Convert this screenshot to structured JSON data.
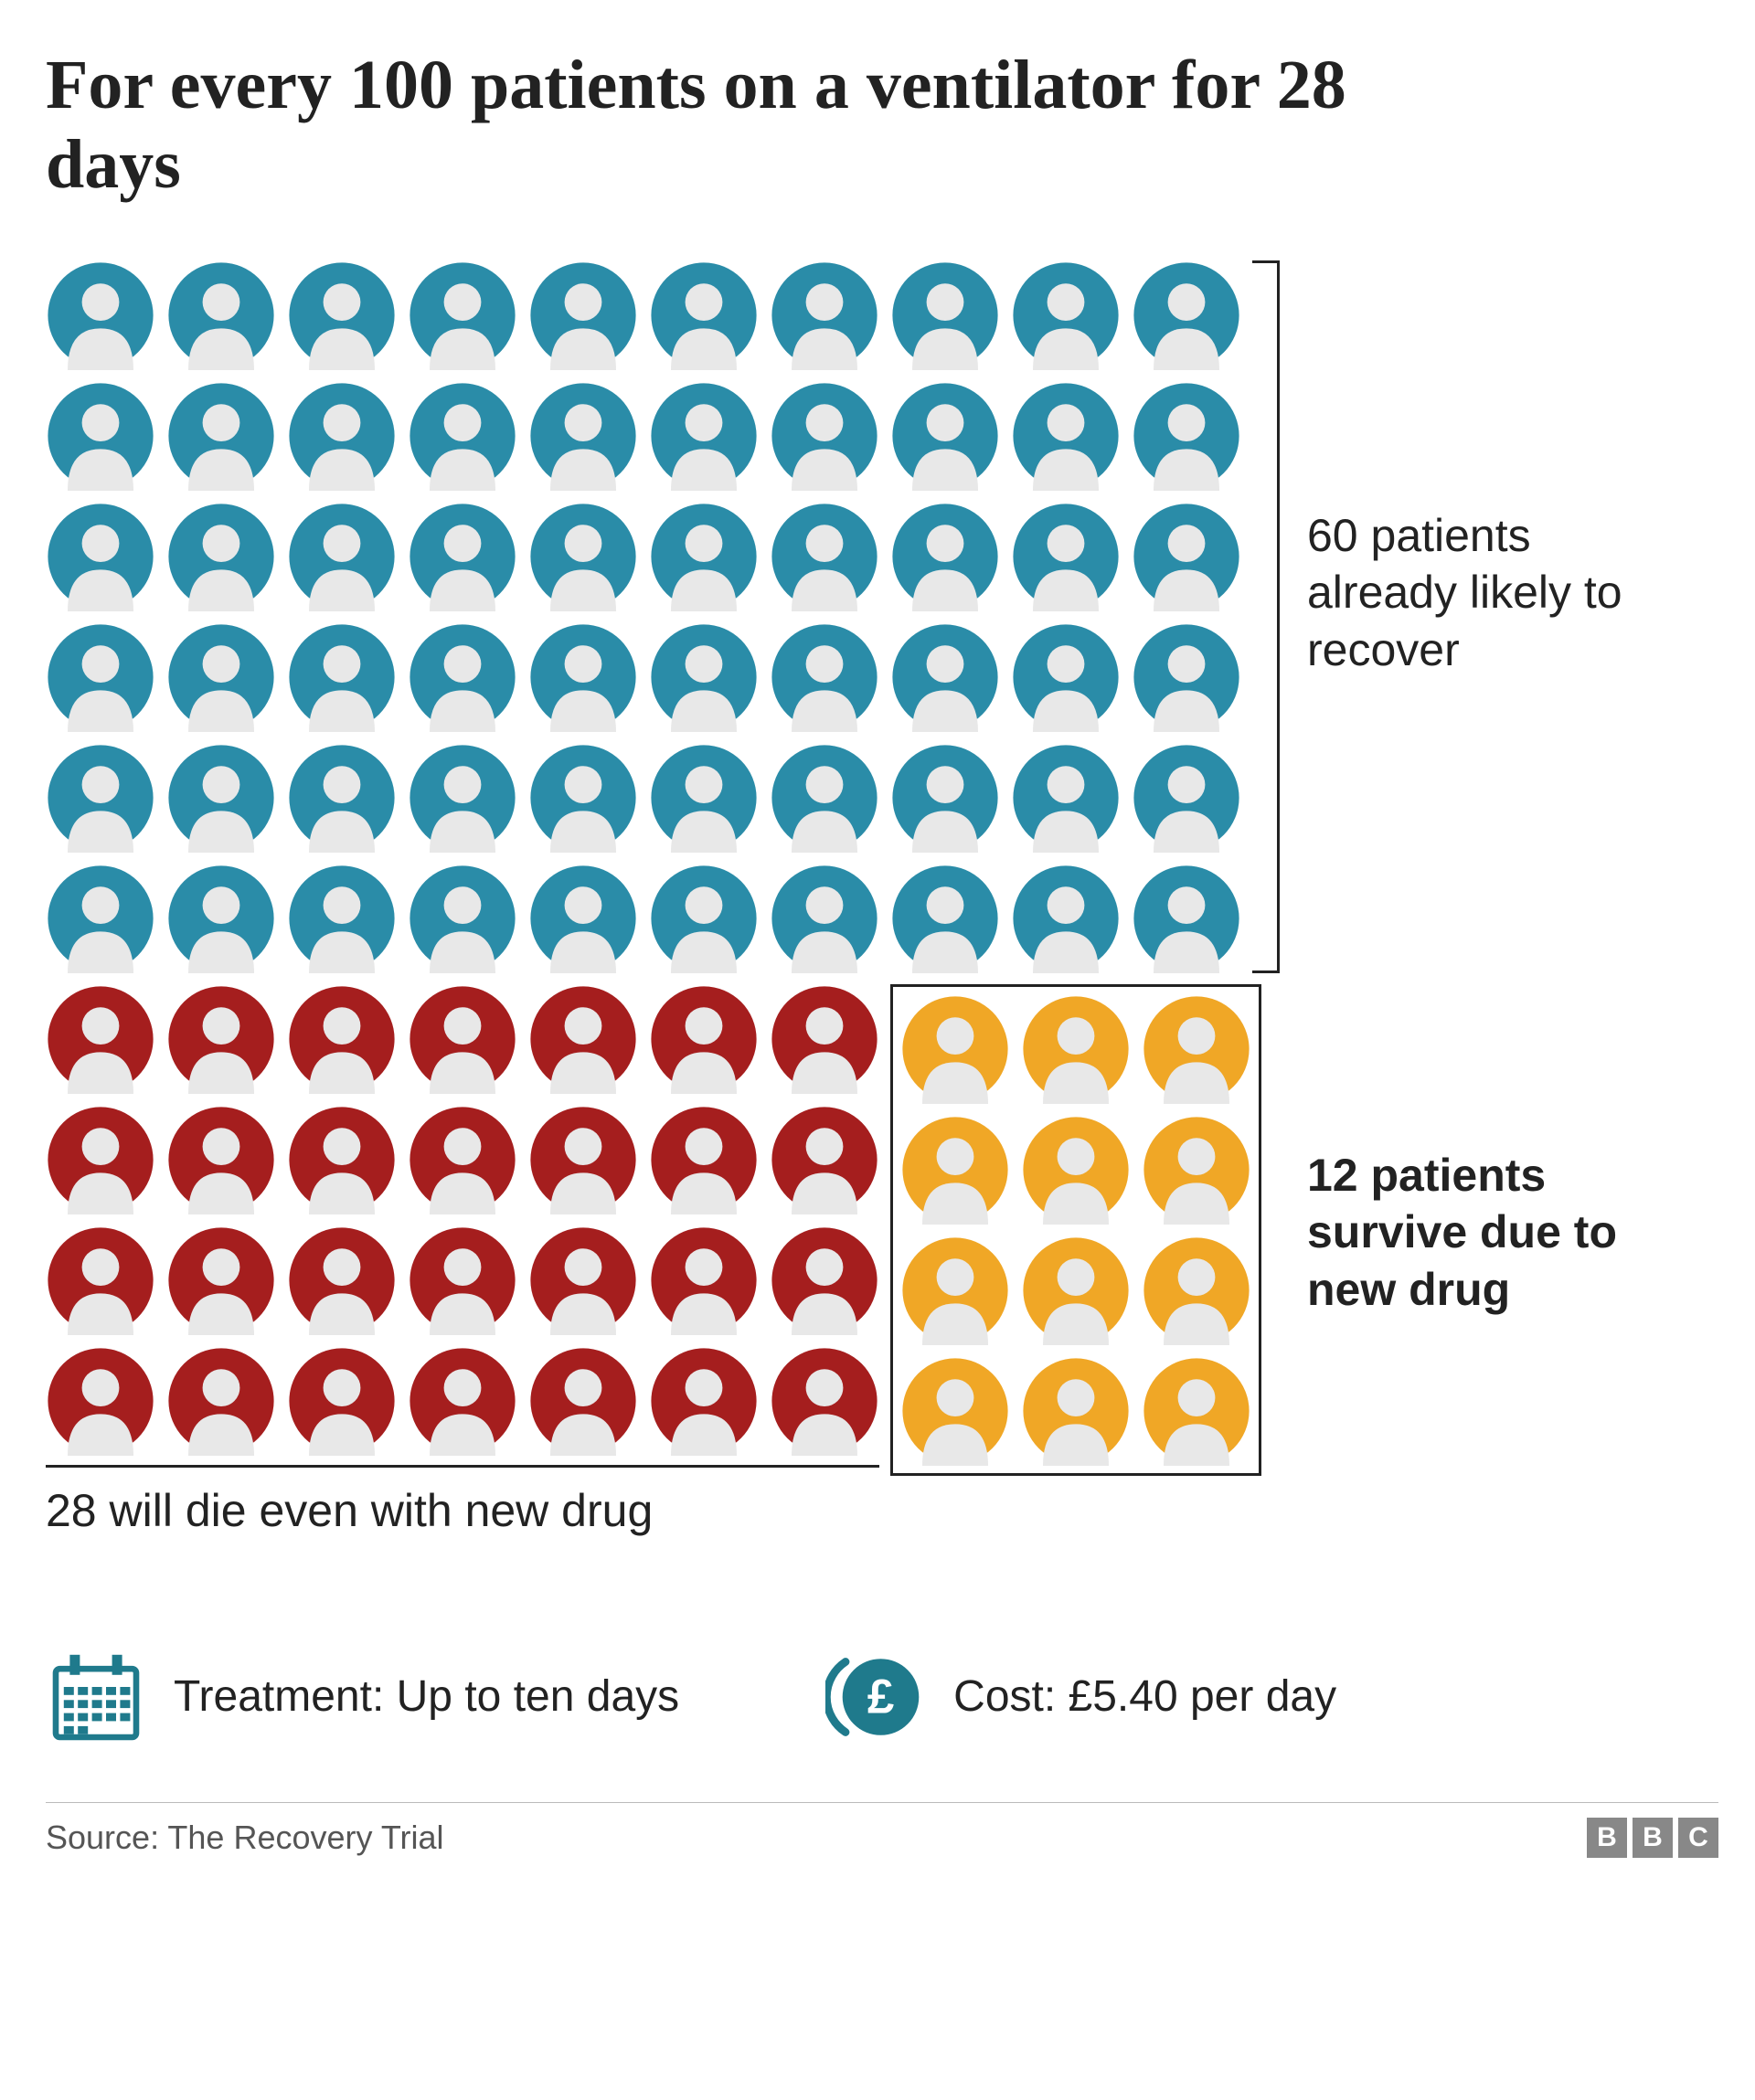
{
  "title": "For every 100 patients on a ventilator for 28 days",
  "groups": {
    "recover": {
      "count": 60,
      "color": "#2a8ca8",
      "label": "60 patients already likely to recover",
      "cols": 10
    },
    "die": {
      "count": 28,
      "color": "#a51e1e",
      "label": "28 will die even with new drug",
      "cols": 7
    },
    "survive": {
      "count": 12,
      "color": "#f0a726",
      "label": "12 patients survive due to new drug",
      "cols": 3
    }
  },
  "icon_face_color": "#e8e8e8",
  "stats": {
    "treatment": {
      "label": "Treatment: Up to ten days",
      "icon_color": "#1f7a8c"
    },
    "cost": {
      "label": "Cost: £5.40 per day",
      "icon_color": "#1f7a8c"
    }
  },
  "source": "Source: The Recovery Trial",
  "attribution": "BBC"
}
